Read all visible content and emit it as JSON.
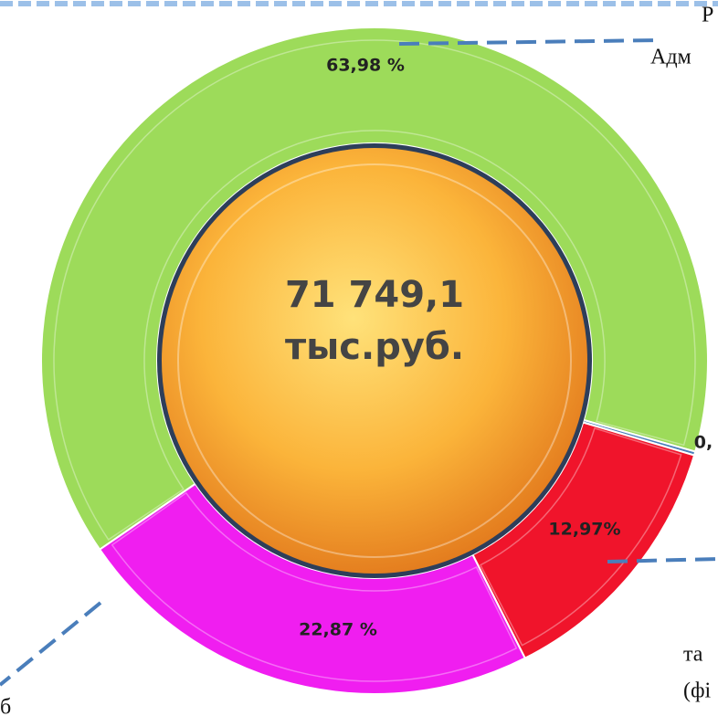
{
  "chart_data": {
    "type": "donut",
    "values": [
      63.98,
      0.18,
      12.97,
      22.87
    ],
    "value_labels": [
      "63,98 %",
      "0,",
      "12,97%",
      "22,87 %"
    ],
    "colors": [
      "#9ddb5a",
      "#4a7ebb",
      "#f0142b",
      "#f01ef0"
    ],
    "center_label": [
      "71 749,1",
      "тыс.руб."
    ],
    "annotations": [
      "Р",
      "Адм",
      "та",
      "(фі",
      "б"
    ]
  }
}
